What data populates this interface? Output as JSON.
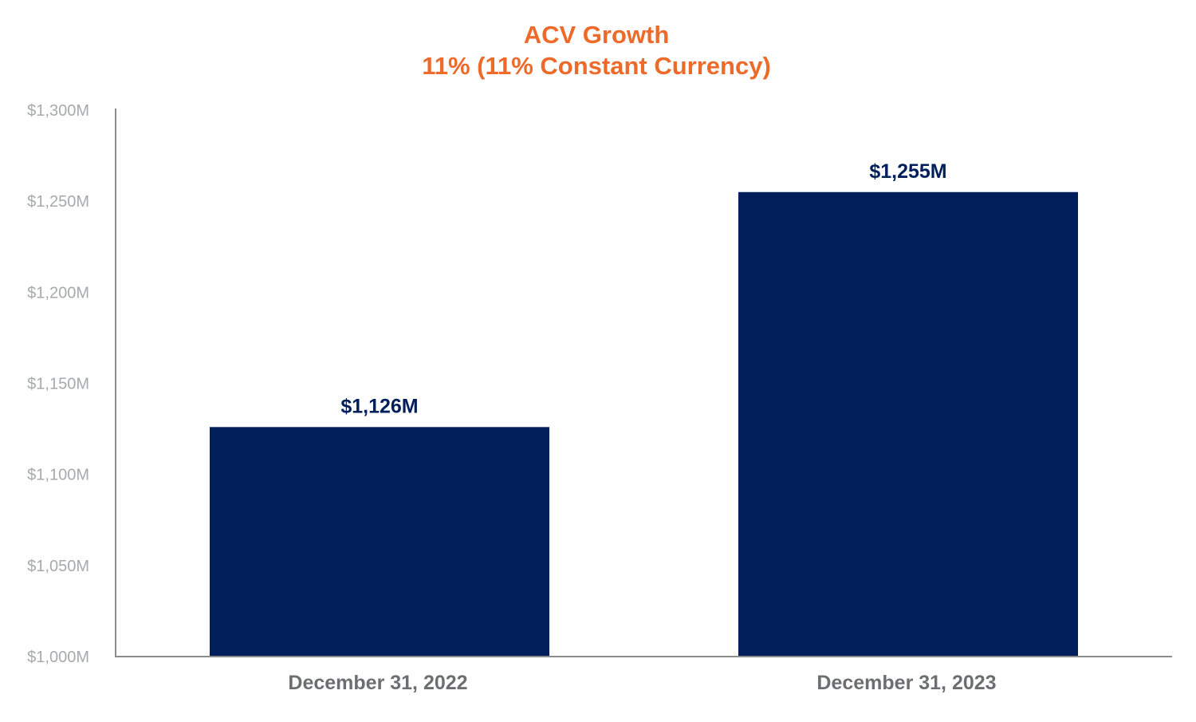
{
  "colors": {
    "title": "#ED6B2A",
    "bar": "#001F5B",
    "data_label": "#001F5B",
    "category_label": "#6D6E71",
    "tick_label": "#A7A9AC",
    "axis": "#8C8C8C"
  },
  "chart_data": {
    "type": "bar",
    "title": "ACV Growth",
    "subtitle": "11% (11% Constant Currency)",
    "xlabel": "",
    "ylabel": "",
    "categories": [
      "December 31, 2022",
      "December 31, 2023"
    ],
    "values": [
      1126,
      1255
    ],
    "data_labels": [
      "$1,126M",
      "$1,255M"
    ],
    "ylim": [
      1000,
      1300
    ],
    "yticks": [
      1000,
      1050,
      1100,
      1150,
      1200,
      1250,
      1300
    ],
    "ytick_labels": [
      "$1,000M",
      "$1,050M",
      "$1,100M",
      "$1,150M",
      "$1,200M",
      "$1,250M",
      "$1,300M"
    ],
    "grid": false,
    "legend": "none"
  }
}
